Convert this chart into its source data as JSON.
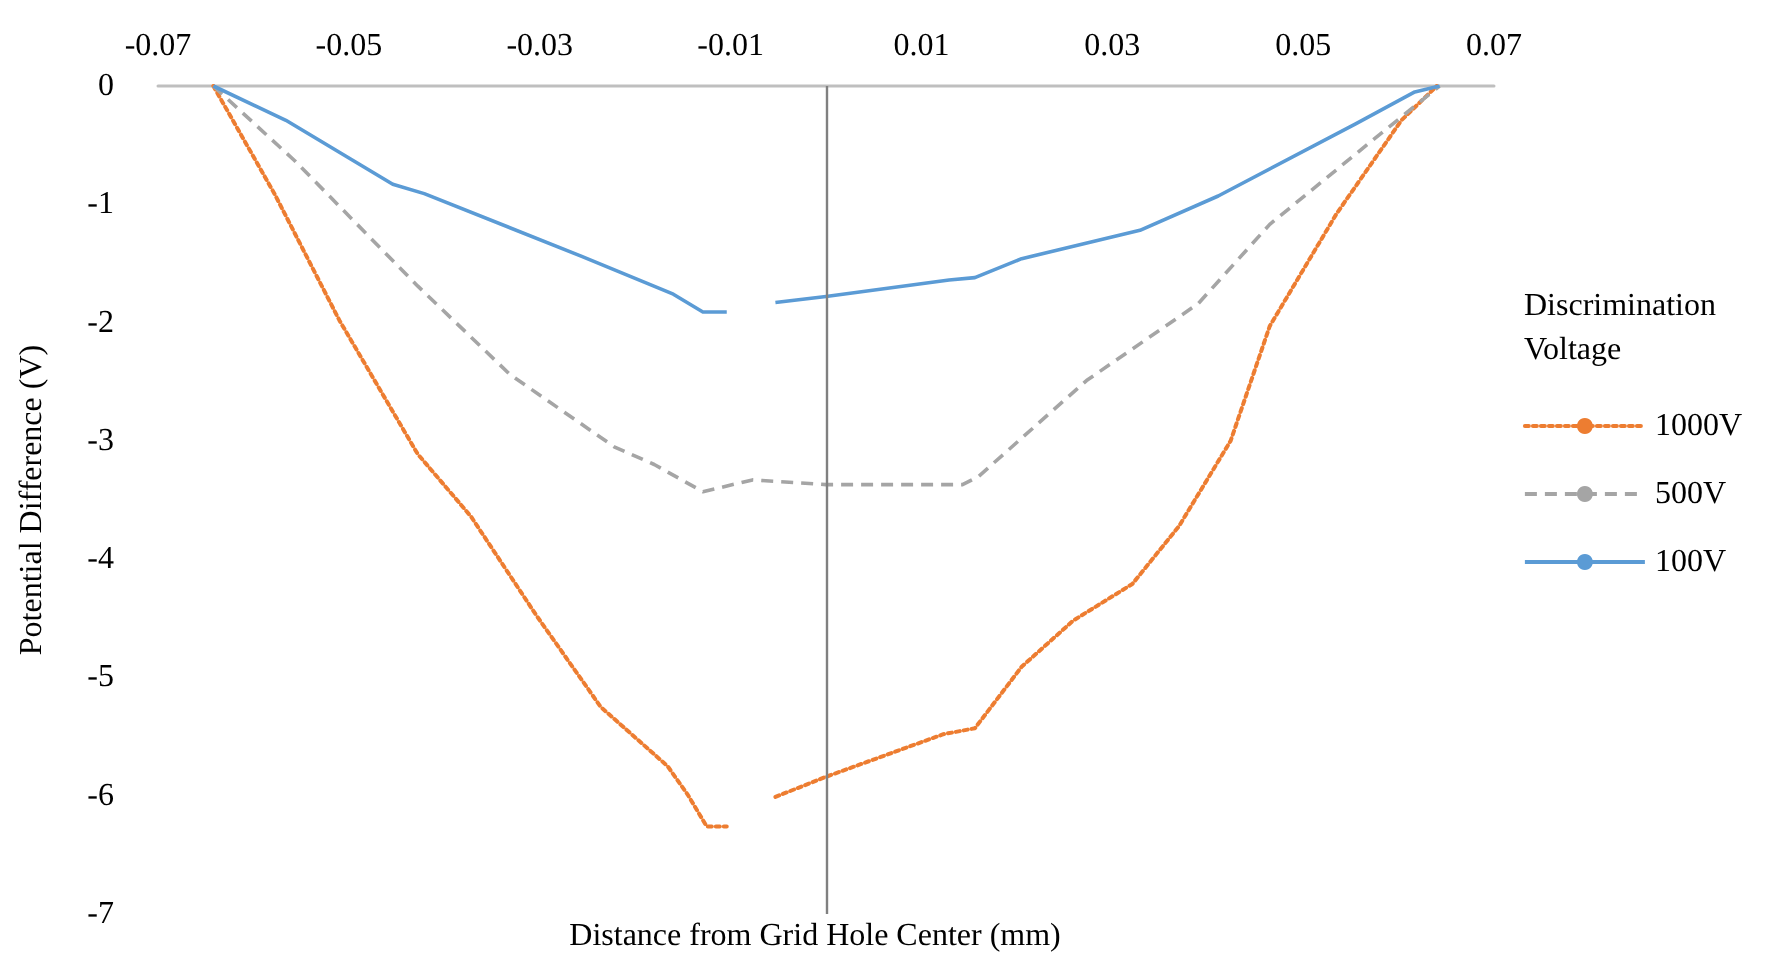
{
  "chart_data": {
    "type": "line",
    "xlabel": "Distance from Grid Hole Center (mm)",
    "ylabel": "Potential Difference (V)",
    "legend_title": "Discrimination Voltage",
    "xlim": [
      -0.07,
      0.07
    ],
    "xticks": [
      -0.07,
      -0.05,
      -0.03,
      -0.01,
      0.01,
      0.03,
      0.05,
      0.07
    ],
    "ylim": [
      -7,
      0
    ],
    "yticks": [
      -7,
      -6,
      -5,
      -4,
      -3,
      -2,
      -1,
      0
    ],
    "grid": false,
    "ref_lines": [
      {
        "axis": "x",
        "value": 0,
        "color": "#808080"
      }
    ],
    "legend": "right",
    "marker": "none",
    "series": [
      {
        "name": "1000V",
        "color": "#ed7d31",
        "line_style": "dotted",
        "x": [
          -0.0642,
          -0.0578,
          -0.051,
          -0.0428,
          -0.0372,
          -0.0304,
          -0.0236,
          -0.0166,
          -0.0145,
          -0.0125,
          -0.0104,
          -0.008,
          -0.0053,
          0,
          0.0123,
          0.0156,
          0.0205,
          0.0259,
          0.0321,
          0.037,
          0.0424,
          0.0465,
          0.0535,
          0.0603,
          0.064
        ],
        "values": [
          0,
          -0.91,
          -1.98,
          -3.11,
          -3.64,
          -4.47,
          -5.25,
          -5.75,
          -5.99,
          -6.26,
          -6.26,
          null,
          -6.01,
          -5.84,
          -5.48,
          -5.43,
          -4.91,
          -4.52,
          -4.21,
          -3.72,
          -3.0,
          -2.03,
          -1.08,
          -0.29,
          0
        ]
      },
      {
        "name": "500V",
        "color": "#a5a5a5",
        "line_style": "dashed",
        "x": [
          -0.0642,
          -0.0557,
          -0.0428,
          -0.0331,
          -0.0222,
          -0.018,
          -0.0129,
          -0.0077,
          0,
          0.0143,
          0.016,
          0.0273,
          0.039,
          0.0465,
          0.0568,
          0.0643
        ],
        "values": [
          0,
          -0.63,
          -1.69,
          -2.44,
          -3.05,
          -3.2,
          -3.43,
          -3.33,
          -3.37,
          -3.37,
          -3.3,
          -2.49,
          -1.84,
          -1.17,
          -0.49,
          0
        ]
      },
      {
        "name": "100V",
        "color": "#5b9bd5",
        "line_style": "solid",
        "x": [
          -0.0642,
          -0.0566,
          -0.0454,
          -0.0421,
          -0.0256,
          -0.016,
          -0.0129,
          -0.0104,
          -0.008,
          -0.0053,
          0,
          0.0129,
          0.0156,
          0.0205,
          0.0329,
          0.0411,
          0.0555,
          0.0617,
          0.0643
        ],
        "values": [
          0,
          -0.29,
          -0.83,
          -0.91,
          -1.44,
          -1.76,
          -1.91,
          -1.91,
          null,
          -1.83,
          -1.78,
          -1.64,
          -1.62,
          -1.46,
          -1.22,
          -0.93,
          -0.32,
          -0.05,
          0
        ]
      }
    ]
  }
}
